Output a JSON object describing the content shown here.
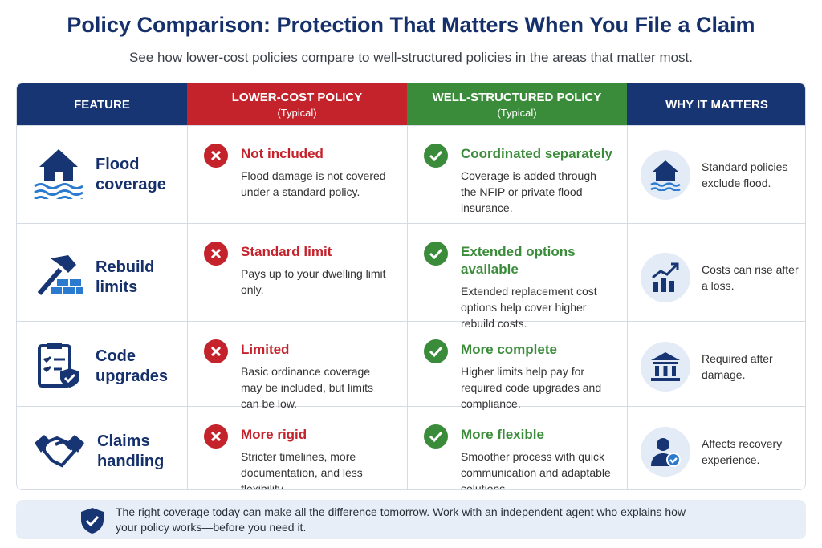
{
  "header": {
    "title": "Policy Comparison: Protection That Matters When You File a Claim",
    "subtitle": "See how lower-cost policies compare to well-structured policies in the areas that matter most."
  },
  "table": {
    "columns": [
      {
        "title": "FEATURE"
      },
      {
        "title": "LOWER-COST POLICY",
        "note": "(Typical)"
      },
      {
        "title": "WELL-STRUCTURED POLICY",
        "note": "(Typical)"
      },
      {
        "title": "WHY IT MATTERS"
      }
    ],
    "rows": [
      {
        "feature": "Flood coverage",
        "lower": {
          "title": "Not included",
          "text": "Flood damage is not covered under a standard policy."
        },
        "well": {
          "title": "Coordinated separately",
          "text": "Coverage is added through the NFIP or private flood insurance."
        },
        "why": "Standard policies exclude flood."
      },
      {
        "feature": "Rebuild limits",
        "lower": {
          "title": "Standard limit",
          "text": "Pays up to your dwelling limit only."
        },
        "well": {
          "title": "Extended options available",
          "text": "Extended replacement cost options help cover higher rebuild costs."
        },
        "why": "Costs can rise after a loss."
      },
      {
        "feature": "Code upgrades",
        "lower": {
          "title": "Limited",
          "text": "Basic ordinance coverage may be included, but limits can be low."
        },
        "well": {
          "title": "More complete",
          "text": "Higher limits help pay for required code upgrades and compliance."
        },
        "why": "Required after damage."
      },
      {
        "feature": "Claims handling",
        "lower": {
          "title": "More rigid",
          "text": "Stricter timelines, more documentation, and less flexibility."
        },
        "well": {
          "title": "More flexible",
          "text": "Smoother process with quick communication and adaptable solutions."
        },
        "why": "Affects recovery experience."
      }
    ]
  },
  "footer": {
    "text": "The right coverage today can make all the difference tomorrow. Work with an independent agent who explains how your policy works—before you need it."
  }
}
